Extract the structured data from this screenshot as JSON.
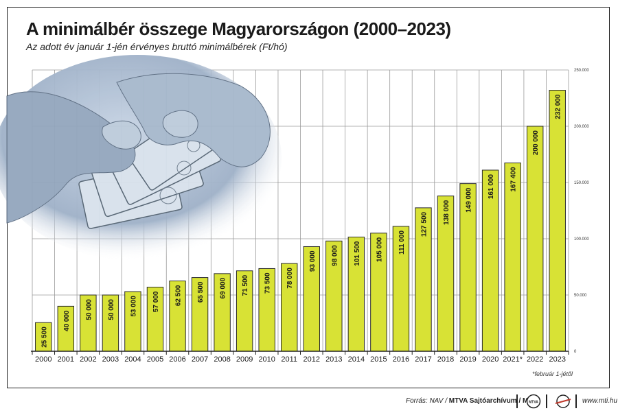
{
  "title": "A minimálbér összege Magyarországon (2000–2023)",
  "subtitle": "Az adott év január 1-jén érvényes bruttó minimálbérek (Ft/hó)",
  "footnote": "*február 1-jétől",
  "footer": {
    "source_prefix": "Forrás: NAV / ",
    "source_agency": "MTVA Sajtóarchívum / MTI",
    "logo1_text": "MTVA",
    "url": "www.mti.hu"
  },
  "colors": {
    "bar": "#d8e235",
    "bar_stroke": "#2a2a2a",
    "grid": "#9a9a9a"
  },
  "illustration": "hands-counting-banknotes",
  "chart_data": {
    "type": "bar",
    "categories": [
      "2000",
      "2001",
      "2002",
      "2003",
      "2004",
      "2005",
      "2006",
      "2007",
      "2008",
      "2009",
      "2010",
      "2011",
      "2012",
      "2013",
      "2014",
      "2015",
      "2016",
      "2017",
      "2018",
      "2019",
      "2020",
      "2021*",
      "2022",
      "2023"
    ],
    "values": [
      25500,
      40000,
      50000,
      50000,
      53000,
      57000,
      62500,
      65500,
      69000,
      71500,
      73500,
      78000,
      93000,
      98000,
      101500,
      105000,
      111000,
      127500,
      138000,
      149000,
      161000,
      167400,
      200000,
      232000
    ],
    "value_labels": [
      "25 500",
      "40 000",
      "50 000",
      "50 000",
      "53 000",
      "57 000",
      "62 500",
      "65 500",
      "69 000",
      "71 500",
      "73 500",
      "78 000",
      "93 000",
      "98 000",
      "101 500",
      "105 000",
      "111 000",
      "127 500",
      "138 000",
      "149 000",
      "161 000",
      "167 400",
      "200 000",
      "232 000"
    ],
    "ylim": [
      0,
      250000
    ],
    "yticks": [
      0,
      50000,
      100000,
      150000,
      200000,
      250000
    ],
    "ytick_labels": [
      "0",
      "50.000",
      "100.000",
      "150.000",
      "200.000",
      "250.000"
    ],
    "axis_side": "right",
    "grid": true
  }
}
